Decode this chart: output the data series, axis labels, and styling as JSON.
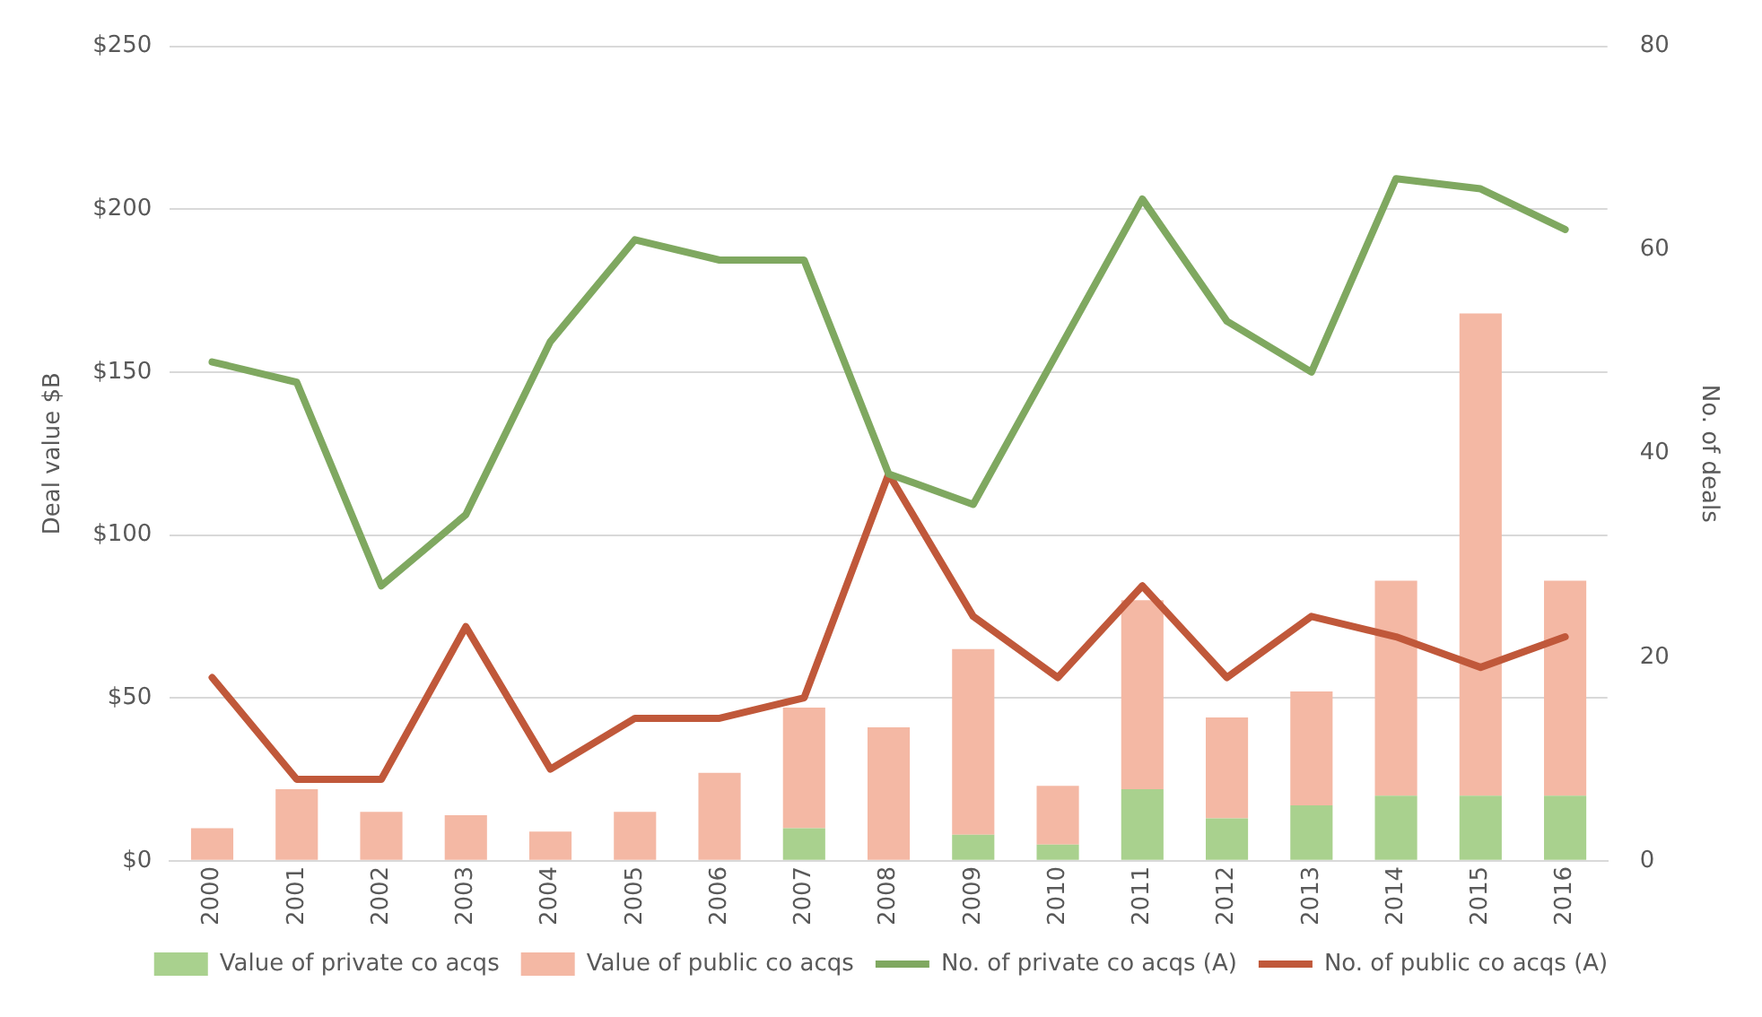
{
  "chart_data": {
    "type": "bar",
    "stacked": true,
    "ylabel": "Deal value $B",
    "y2label": "No. of deals",
    "categories": [
      "2000",
      "2001",
      "2002",
      "2003",
      "2004",
      "2005",
      "2006",
      "2007",
      "2008",
      "2009",
      "2010",
      "2011",
      "2012",
      "2013",
      "2014",
      "2015",
      "2016"
    ],
    "series": [
      {
        "name": "Value of private co acqs",
        "color": "#a9d18e",
        "values": [
          0,
          0,
          0,
          0,
          0,
          0,
          0,
          10,
          0,
          8,
          5,
          22,
          13,
          17,
          20,
          20,
          20
        ]
      },
      {
        "name": "Value of public co acqs",
        "color": "#f4b8a4",
        "values": [
          10,
          22,
          15,
          14,
          9,
          15,
          27,
          37,
          41,
          57,
          18,
          58,
          31,
          35,
          66,
          148,
          66
        ]
      },
      {
        "name": "No. of private co acqs (A)",
        "type": "line",
        "axis": "y2",
        "color": "#7fa860",
        "values": [
          49,
          47,
          27,
          34,
          51,
          61,
          59,
          59,
          38,
          35,
          50,
          65,
          53,
          48,
          67,
          66,
          62
        ]
      },
      {
        "name": "No. of public co acqs (A)",
        "type": "line",
        "axis": "y2",
        "color": "#c0583a",
        "values": [
          18,
          8,
          8,
          23,
          9,
          14,
          14,
          16,
          38,
          24,
          18,
          27,
          18,
          24,
          22,
          19,
          22
        ]
      }
    ],
    "ylim": [
      0,
      250
    ],
    "yticks": [
      {
        "value": 0,
        "label": "$0"
      },
      {
        "value": 50,
        "label": "$50"
      },
      {
        "value": 100,
        "label": "$100"
      },
      {
        "value": 150,
        "label": "$150"
      },
      {
        "value": 200,
        "label": "$200"
      },
      {
        "value": 250,
        "label": "$250"
      }
    ],
    "y2lim": [
      0,
      80
    ],
    "y2ticks": [
      0,
      20,
      40,
      60,
      80
    ],
    "grid": "y",
    "legend": "bottom",
    "marker": "none"
  }
}
